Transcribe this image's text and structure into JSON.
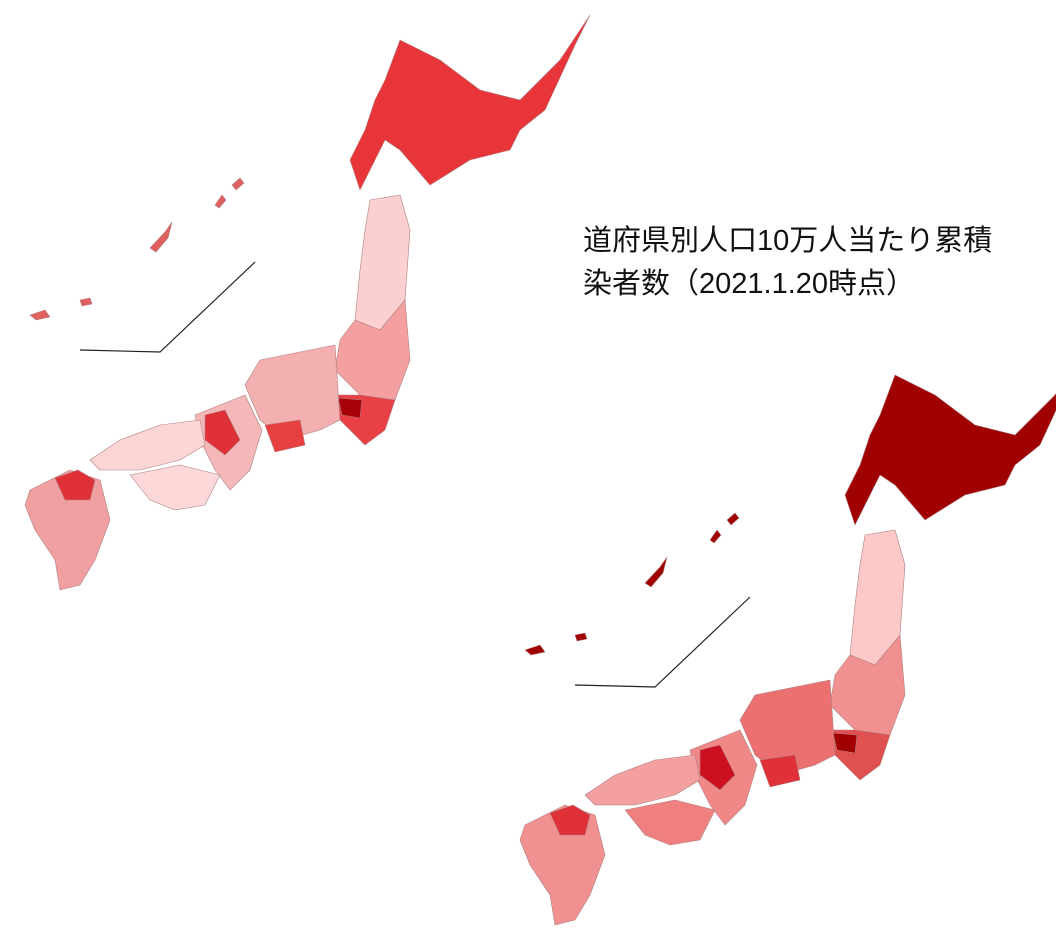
{
  "title_lines": [
    "道府県別人口10万人当たり累積",
    "染者数（2021.1.20時点）"
  ]
}
